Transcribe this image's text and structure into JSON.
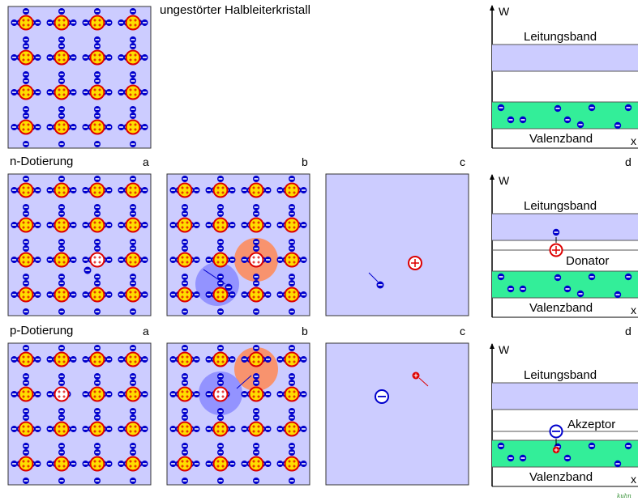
{
  "title": "ungestörter Halbleiterkristall",
  "rows": {
    "n": {
      "label": "n-Dotierung",
      "a": "a",
      "b": "b",
      "c": "c",
      "d": "d"
    },
    "p": {
      "label": "p-Dotierung",
      "a": "a",
      "b": "b",
      "c": "c",
      "d": "d"
    }
  },
  "band_diagrams": [
    {
      "axis_y": "W",
      "axis_x": "x",
      "conduction": "Leitungsband",
      "valence": "Valenzband",
      "level_label": ""
    },
    {
      "axis_y": "W",
      "axis_x": "x",
      "conduction": "Leitungsband",
      "valence": "Valenzband",
      "level_label": "Donator"
    },
    {
      "axis_y": "W",
      "axis_x": "x",
      "conduction": "Leitungsband",
      "valence": "Valenzband",
      "level_label": "Akzeptor"
    }
  ],
  "colors": {
    "panel_bg": "#ccccff",
    "conduction_band": "#ccccff",
    "valence_band": "#33ee99",
    "electron": "#0000cc",
    "atom_core": "#ffdd00",
    "atom_ring": "#dd0000",
    "hole_ring": "#dd0000",
    "positive_region": "#ff8855",
    "negative_region": "#8888ff"
  },
  "signature": "kuhn"
}
